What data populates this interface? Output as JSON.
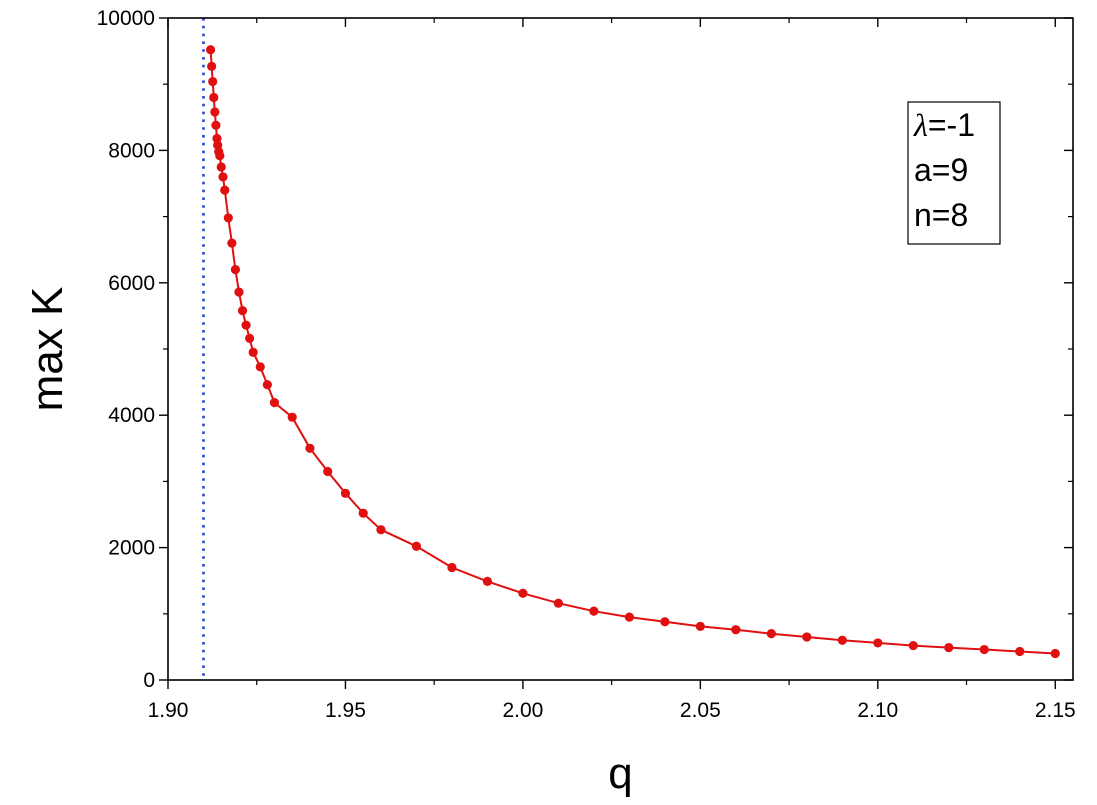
{
  "chart_data": {
    "type": "line",
    "title": "",
    "xlabel": "q",
    "ylabel": "max K",
    "xlim": [
      1.9,
      2.155
    ],
    "ylim": [
      0,
      10000
    ],
    "xticks": [
      1.9,
      1.95,
      2.0,
      2.05,
      2.1,
      2.15
    ],
    "xtick_labels": [
      "1.90",
      "1.95",
      "2.00",
      "2.05",
      "2.10",
      "2.15"
    ],
    "yticks": [
      0,
      2000,
      4000,
      6000,
      8000,
      10000
    ],
    "ytick_labels": [
      "0",
      "2000",
      "4000",
      "6000",
      "8000",
      "10000"
    ],
    "grid": false,
    "series": [
      {
        "color": "#e01010",
        "marker": "circle",
        "x": [
          1.912,
          1.9123,
          1.9126,
          1.9129,
          1.9132,
          1.9135,
          1.9138,
          1.914,
          1.9143,
          1.9146,
          1.915,
          1.9155,
          1.916,
          1.917,
          1.918,
          1.919,
          1.92,
          1.921,
          1.922,
          1.923,
          1.924,
          1.926,
          1.928,
          1.93,
          1.935,
          1.94,
          1.945,
          1.95,
          1.955,
          1.96,
          1.97,
          1.98,
          1.99,
          2.0,
          2.01,
          2.02,
          2.03,
          2.04,
          2.05,
          2.06,
          2.07,
          2.08,
          2.09,
          2.1,
          2.11,
          2.12,
          2.13,
          2.14,
          2.15
        ],
        "y": [
          9520,
          9270,
          9040,
          8800,
          8580,
          8380,
          8180,
          8080,
          7980,
          7920,
          7750,
          7600,
          7400,
          6980,
          6600,
          6200,
          5860,
          5580,
          5360,
          5160,
          4950,
          4730,
          4460,
          4190,
          3970,
          3500,
          3150,
          2820,
          2520,
          2270,
          2020,
          1700,
          1490,
          1310,
          1160,
          1040,
          950,
          880,
          810,
          760,
          700,
          650,
          600,
          560,
          520,
          490,
          460,
          430,
          400
        ]
      }
    ],
    "reference_line": {
      "x": 1.91,
      "color": "#2a3fe0",
      "style": "dotted"
    },
    "legend": {
      "placement": "top-right",
      "symbol": "λ",
      "lines": [
        "=-1",
        "a=9",
        "n=8"
      ]
    }
  }
}
